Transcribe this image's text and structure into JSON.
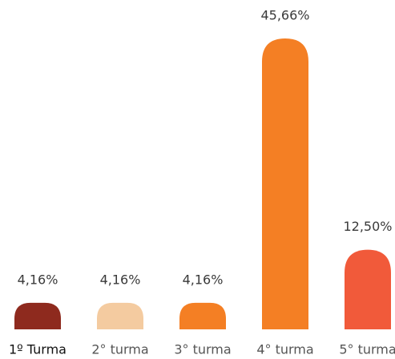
{
  "chart_data": {
    "type": "bar",
    "categories": [
      "1º Turma",
      "2° turma",
      "3° turma",
      "4° turma",
      "5° turma"
    ],
    "values": [
      4.16,
      4.16,
      4.16,
      45.66,
      12.5
    ],
    "value_labels": [
      "4,16%",
      "4,16%",
      "4,16%",
      "45,66%",
      "12,50%"
    ],
    "colors": [
      "#8e2a1e",
      "#f4cba0",
      "#f47f24",
      "#f47f24",
      "#f15a3a"
    ]
  }
}
